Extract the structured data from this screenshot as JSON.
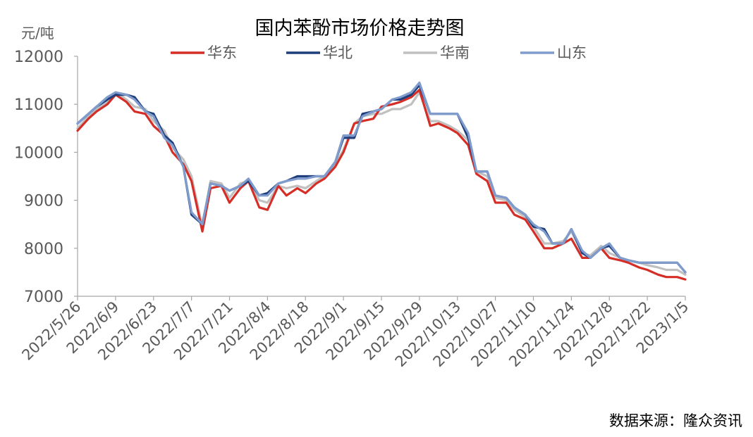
{
  "chart_data": {
    "type": "line",
    "title": "国内苯酚市场价格走势图",
    "ylabel": "元/吨",
    "ylim": [
      7000,
      12000
    ],
    "yticks": [
      7000,
      8000,
      9000,
      10000,
      11000,
      12000
    ],
    "x_start": "2022/5/26",
    "x_end": "2023/1/5",
    "xticks": [
      "2022/5/26",
      "2022/6/9",
      "2022/6/23",
      "2022/7/7",
      "2022/7/21",
      "2022/8/4",
      "2022/8/18",
      "2022/9/1",
      "2022/9/15",
      "2022/9/29",
      "2022/10/13",
      "2022/10/27",
      "2022/11/10",
      "2022/11/24",
      "2022/12/8",
      "2022/12/22",
      "2023/1/5"
    ],
    "grid": false,
    "legend_position": "top",
    "series": [
      {
        "name": "华东",
        "color": "#d42e27",
        "x": [
          "2022/5/26",
          "2022/5/30",
          "2022/6/2",
          "2022/6/6",
          "2022/6/9",
          "2022/6/13",
          "2022/6/16",
          "2022/6/20",
          "2022/6/23",
          "2022/6/27",
          "2022/6/30",
          "2022/7/4",
          "2022/7/7",
          "2022/7/11",
          "2022/7/14",
          "2022/7/18",
          "2022/7/21",
          "2022/7/25",
          "2022/7/28",
          "2022/8/1",
          "2022/8/4",
          "2022/8/8",
          "2022/8/11",
          "2022/8/15",
          "2022/8/18",
          "2022/8/22",
          "2022/8/25",
          "2022/8/29",
          "2022/9/1",
          "2022/9/5",
          "2022/9/8",
          "2022/9/12",
          "2022/9/15",
          "2022/9/19",
          "2022/9/22",
          "2022/9/26",
          "2022/9/29",
          "2022/10/3",
          "2022/10/6",
          "2022/10/10",
          "2022/10/13",
          "2022/10/17",
          "2022/10/20",
          "2022/10/24",
          "2022/10/27",
          "2022/10/31",
          "2022/11/3",
          "2022/11/7",
          "2022/11/10",
          "2022/11/14",
          "2022/11/17",
          "2022/11/21",
          "2022/11/24",
          "2022/11/28",
          "2022/12/1",
          "2022/12/5",
          "2022/12/8",
          "2022/12/12",
          "2022/12/15",
          "2022/12/19",
          "2022/12/22",
          "2022/12/26",
          "2022/12/29",
          "2023/1/2",
          "2023/1/5"
        ],
        "values": [
          10450,
          10700,
          10850,
          11000,
          11200,
          11050,
          10850,
          10800,
          10550,
          10350,
          10000,
          9750,
          9400,
          8350,
          9250,
          9300,
          8950,
          9250,
          9400,
          8850,
          8800,
          9300,
          9100,
          9250,
          9150,
          9350,
          9450,
          9700,
          10000,
          10600,
          10650,
          10700,
          10950,
          11000,
          11050,
          11150,
          11300,
          10550,
          10600,
          10500,
          10400,
          10150,
          9550,
          9400,
          8950,
          8950,
          8700,
          8600,
          8350,
          8000,
          8000,
          8100,
          8200,
          7800,
          7800,
          8000,
          7800,
          7750,
          7700,
          7600,
          7550,
          7450,
          7400,
          7400,
          7350
        ]
      },
      {
        "name": "华北",
        "color": "#1f3e7c",
        "x": [
          "2022/5/26",
          "2022/5/30",
          "2022/6/2",
          "2022/6/6",
          "2022/6/9",
          "2022/6/13",
          "2022/6/16",
          "2022/6/20",
          "2022/6/23",
          "2022/6/27",
          "2022/6/30",
          "2022/7/4",
          "2022/7/7",
          "2022/7/11",
          "2022/7/14",
          "2022/7/18",
          "2022/7/21",
          "2022/7/25",
          "2022/7/28",
          "2022/8/1",
          "2022/8/4",
          "2022/8/8",
          "2022/8/11",
          "2022/8/15",
          "2022/8/18",
          "2022/8/22",
          "2022/8/25",
          "2022/8/29",
          "2022/9/1",
          "2022/9/5",
          "2022/9/8",
          "2022/9/12",
          "2022/9/15",
          "2022/9/19",
          "2022/9/22",
          "2022/9/26",
          "2022/9/29",
          "2022/10/3",
          "2022/10/6",
          "2022/10/10",
          "2022/10/13",
          "2022/10/17",
          "2022/10/20",
          "2022/10/24",
          "2022/10/27",
          "2022/10/31",
          "2022/11/3",
          "2022/11/7",
          "2022/11/10",
          "2022/11/14",
          "2022/11/17",
          "2022/11/21",
          "2022/11/24",
          "2022/11/28",
          "2022/12/1",
          "2022/12/5",
          "2022/12/8",
          "2022/12/12",
          "2022/12/15",
          "2022/12/19",
          "2022/12/22",
          "2022/12/26",
          "2022/12/29",
          "2023/1/2",
          "2023/1/5"
        ],
        "values": [
          10600,
          10800,
          10950,
          11100,
          11200,
          11200,
          11150,
          10850,
          10800,
          10350,
          10200,
          9700,
          8700,
          8500,
          9350,
          9300,
          9200,
          9300,
          9400,
          9100,
          9150,
          9350,
          9400,
          9500,
          9500,
          9500,
          9500,
          9800,
          10300,
          10300,
          10800,
          10850,
          10900,
          11100,
          11100,
          11200,
          11400,
          10800,
          10800,
          10800,
          10800,
          10300,
          9600,
          9600,
          9100,
          9050,
          8850,
          8700,
          8450,
          8400,
          8100,
          8100,
          8400,
          7900,
          7800,
          8000,
          8050,
          7800,
          7750,
          7700,
          7700,
          7700,
          7700,
          7700,
          7500
        ]
      },
      {
        "name": "华南",
        "color": "#c0c0c0",
        "x": [
          "2022/5/26",
          "2022/5/30",
          "2022/6/2",
          "2022/6/6",
          "2022/6/9",
          "2022/6/13",
          "2022/6/16",
          "2022/6/20",
          "2022/6/23",
          "2022/6/27",
          "2022/6/30",
          "2022/7/4",
          "2022/7/7",
          "2022/7/11",
          "2022/7/14",
          "2022/7/18",
          "2022/7/21",
          "2022/7/25",
          "2022/7/28",
          "2022/8/1",
          "2022/8/4",
          "2022/8/8",
          "2022/8/11",
          "2022/8/15",
          "2022/8/18",
          "2022/8/22",
          "2022/8/25",
          "2022/8/29",
          "2022/9/1",
          "2022/9/5",
          "2022/9/8",
          "2022/9/12",
          "2022/9/15",
          "2022/9/19",
          "2022/9/22",
          "2022/9/26",
          "2022/9/29",
          "2022/10/3",
          "2022/10/6",
          "2022/10/10",
          "2022/10/13",
          "2022/10/17",
          "2022/10/20",
          "2022/10/24",
          "2022/10/27",
          "2022/10/31",
          "2022/11/3",
          "2022/11/7",
          "2022/11/10",
          "2022/11/14",
          "2022/11/17",
          "2022/11/21",
          "2022/11/24",
          "2022/11/28",
          "2022/12/1",
          "2022/12/5",
          "2022/12/8",
          "2022/12/12",
          "2022/12/15",
          "2022/12/19",
          "2022/12/22",
          "2022/12/26",
          "2022/12/29",
          "2023/1/2",
          "2023/1/5"
        ],
        "values": [
          10500,
          10750,
          10900,
          11050,
          11250,
          11100,
          10950,
          10900,
          10650,
          10450,
          10100,
          9850,
          9500,
          8450,
          9400,
          9350,
          9050,
          9350,
          9400,
          9000,
          8950,
          9300,
          9250,
          9300,
          9250,
          9400,
          9500,
          9750,
          10050,
          10600,
          10750,
          10800,
          10800,
          10900,
          10900,
          11000,
          11250,
          10650,
          10650,
          10550,
          10450,
          10250,
          9600,
          9500,
          9050,
          9000,
          8800,
          8650,
          8450,
          8100,
          8100,
          8150,
          8350,
          7900,
          7850,
          8050,
          7900,
          7800,
          7750,
          7700,
          7650,
          7600,
          7550,
          7550,
          7450
        ]
      },
      {
        "name": "山东",
        "color": "#7f9ccc",
        "x": [
          "2022/5/26",
          "2022/5/30",
          "2022/6/2",
          "2022/6/6",
          "2022/6/9",
          "2022/6/13",
          "2022/6/16",
          "2022/6/20",
          "2022/6/23",
          "2022/6/27",
          "2022/6/30",
          "2022/7/4",
          "2022/7/7",
          "2022/7/11",
          "2022/7/14",
          "2022/7/18",
          "2022/7/21",
          "2022/7/25",
          "2022/7/28",
          "2022/8/1",
          "2022/8/4",
          "2022/8/8",
          "2022/8/11",
          "2022/8/15",
          "2022/8/18",
          "2022/8/22",
          "2022/8/25",
          "2022/8/29",
          "2022/9/1",
          "2022/9/5",
          "2022/9/8",
          "2022/9/12",
          "2022/9/15",
          "2022/9/19",
          "2022/9/22",
          "2022/9/26",
          "2022/9/29",
          "2022/10/3",
          "2022/10/6",
          "2022/10/10",
          "2022/10/13",
          "2022/10/17",
          "2022/10/20",
          "2022/10/24",
          "2022/10/27",
          "2022/10/31",
          "2022/11/3",
          "2022/11/7",
          "2022/11/10",
          "2022/11/14",
          "2022/11/17",
          "2022/11/21",
          "2022/11/24",
          "2022/11/28",
          "2022/12/1",
          "2022/12/5",
          "2022/12/8",
          "2022/12/12",
          "2022/12/15",
          "2022/12/19",
          "2022/12/22",
          "2022/12/26",
          "2022/12/29",
          "2023/1/2",
          "2023/1/5"
        ],
        "values": [
          10600,
          10800,
          10950,
          11150,
          11250,
          11200,
          11100,
          10850,
          10750,
          10300,
          10150,
          9700,
          8750,
          8500,
          9350,
          9300,
          9200,
          9300,
          9450,
          9100,
          9100,
          9350,
          9400,
          9450,
          9450,
          9500,
          9500,
          9800,
          10350,
          10350,
          10750,
          10850,
          10900,
          11100,
          11150,
          11250,
          11450,
          10800,
          10800,
          10800,
          10800,
          10400,
          9600,
          9600,
          9100,
          9050,
          8850,
          8700,
          8500,
          8350,
          8100,
          8100,
          8400,
          7950,
          7800,
          8000,
          8100,
          7800,
          7750,
          7700,
          7700,
          7700,
          7700,
          7700,
          7500
        ]
      }
    ]
  },
  "source_note": "数据来源：隆众资讯"
}
